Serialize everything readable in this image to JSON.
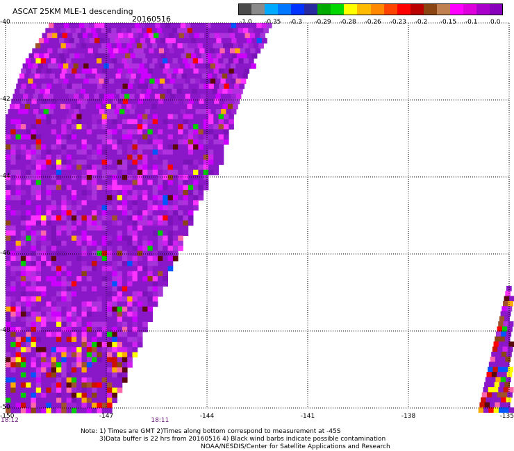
{
  "header": {
    "title": "ASCAT 25KM MLE-1 descending",
    "date": "20160516"
  },
  "colorbar": {
    "colors": [
      "#4a4a4a",
      "#8a8a8a",
      "#00aaff",
      "#0077ff",
      "#0033ff",
      "#2a2aa0",
      "#00aa00",
      "#00d800",
      "#ffff00",
      "#ffbb00",
      "#ff8800",
      "#ff4400",
      "#ff0000",
      "#bb0000",
      "#8b4513",
      "#c08050",
      "#ff00ff",
      "#dd00dd",
      "#aa00cc",
      "#8800bb"
    ],
    "labels": [
      "-1.0",
      "-0.35",
      "-0.3",
      "-0.29",
      "-0.28",
      "-0.26",
      "-0.23",
      "-0.2",
      "-0.15",
      "-0.1",
      "0.0"
    ]
  },
  "axes": {
    "lat_labels": [
      "-40",
      "-42",
      "-44",
      "-46",
      "-48",
      "-50"
    ],
    "lon_labels": [
      "-150",
      "-147",
      "-144",
      "-141",
      "-138",
      "-135"
    ],
    "lat_range": [
      -50,
      -40
    ],
    "lon_range": [
      -150,
      -135
    ]
  },
  "times": [
    {
      "label": "18:12",
      "lon": -150
    },
    {
      "label": "18:11",
      "lon": -145.4
    }
  ],
  "notes": {
    "line1": "Note: 1) Times are GMT 2)Times along bottom correspond to measurement at -45S",
    "line2": "3)Data buffer is 22 hrs from 20160516 4) Black wind barbs indicate possible contamination",
    "line3": "NOAA/NESDIS/Center for Satellite Applications and Research"
  },
  "palette": {
    "dominant": "#8a18c8",
    "variants": [
      "#9b22d2",
      "#7a14b8",
      "#a535d8",
      "#b030e0",
      "#cc00ff",
      "#ff33ff",
      "#d020f0"
    ],
    "rare": [
      "#5a0a0a",
      "#8b4513",
      "#a0522d",
      "#ff0000",
      "#ffaa00",
      "#ffff00",
      "#00cc00",
      "#0055ff",
      "#ff66aa",
      "#cc1100"
    ]
  }
}
